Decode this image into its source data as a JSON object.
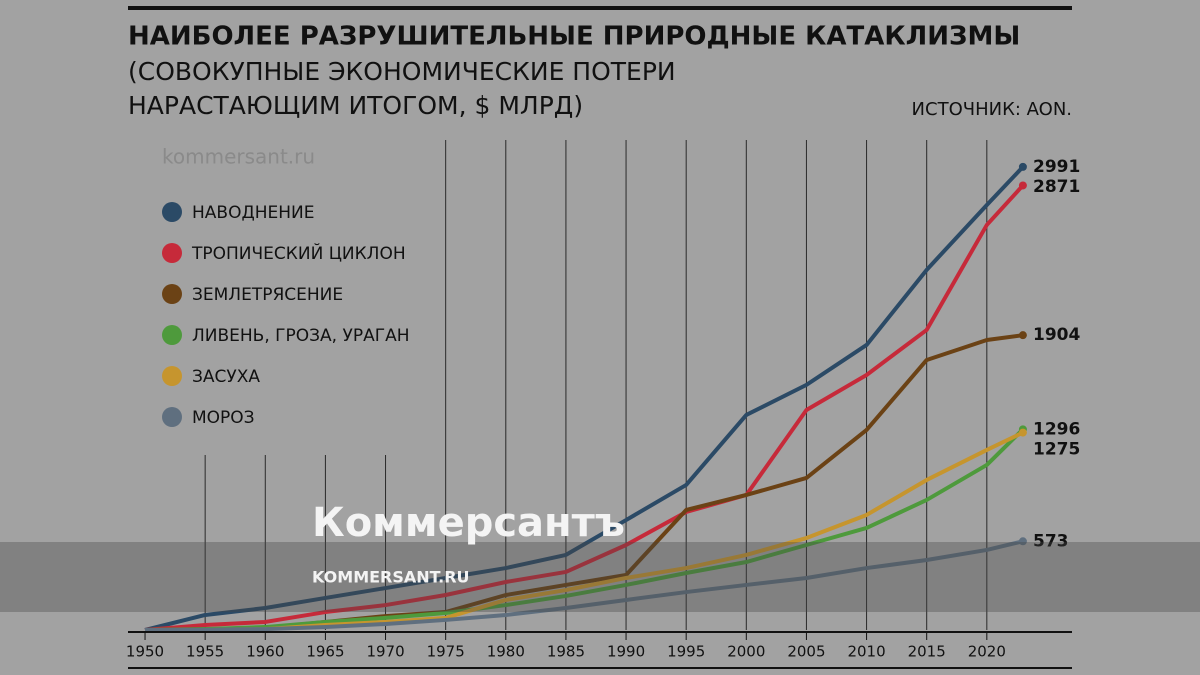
{
  "chart_data": {
    "type": "line",
    "title": "НАИБОЛЕЕ РАЗРУШИТЕЛЬНЫЕ ПРИРОДНЫЕ КАТАКЛИЗМЫ",
    "subtitle": [
      "(СОВОКУПНЫЕ ЭКОНОМИЧЕСКИЕ ПОТЕРИ",
      "НАРАСТАЮЩИМ ИТОГОМ, $ МЛРД)"
    ],
    "source": "ИСТОЧНИК: AON.",
    "x": [
      1950,
      1955,
      1960,
      1965,
      1970,
      1975,
      1980,
      1985,
      1990,
      1995,
      2000,
      2005,
      2010,
      2015,
      2020,
      2023
    ],
    "xlim": [
      1949,
      2027
    ],
    "xticks": [
      1950,
      1955,
      1960,
      1965,
      1970,
      1975,
      1980,
      1985,
      1990,
      1995,
      2000,
      2005,
      2010,
      2015,
      2020
    ],
    "ylim": [
      0,
      3100
    ],
    "grid": true,
    "series": [
      {
        "name": "НАВОДНЕНИЕ",
        "color": "#2b4a66",
        "values": [
          0,
          97,
          142,
          207,
          271,
          336,
          400,
          485,
          710,
          937,
          1389,
          1583,
          1841,
          2326,
          2745,
          2991
        ]
      },
      {
        "name": "ТРОПИЧЕСКИЙ ЦИКЛОН",
        "color": "#c62a3a",
        "values": [
          0,
          32,
          52,
          116,
          161,
          226,
          310,
          375,
          549,
          762,
          872,
          1421,
          1647,
          1938,
          2616,
          2871
        ]
      },
      {
        "name": "ЗЕМЛЕТРЯСЕНИЕ",
        "color": "#6b4215",
        "values": [
          0,
          5,
          13,
          52,
          90,
          116,
          226,
          291,
          355,
          775,
          872,
          982,
          1292,
          1744,
          1873,
          1904
        ]
      },
      {
        "name": "ЛИВЕНЬ, ГРОЗА, УРАГАН",
        "color": "#4e9a3c",
        "values": [
          0,
          6,
          19,
          52,
          78,
          110,
          161,
          220,
          291,
          368,
          439,
          549,
          659,
          840,
          1066,
          1296
        ]
      },
      {
        "name": "ЗАСУХА",
        "color": "#c6952e",
        "values": [
          0,
          0,
          6,
          32,
          52,
          78,
          194,
          258,
          336,
          400,
          485,
          594,
          743,
          969,
          1163,
          1275
        ]
      },
      {
        "name": "МОРОЗ",
        "color": "#5f6f7f",
        "values": [
          0,
          2,
          6,
          19,
          39,
          65,
          97,
          142,
          194,
          245,
          291,
          336,
          400,
          452,
          517,
          573
        ]
      }
    ]
  },
  "watermark": {
    "corner": "kommersant.ru",
    "brand": "Коммерсантъ",
    "site": "KOMMERSANT.RU"
  }
}
